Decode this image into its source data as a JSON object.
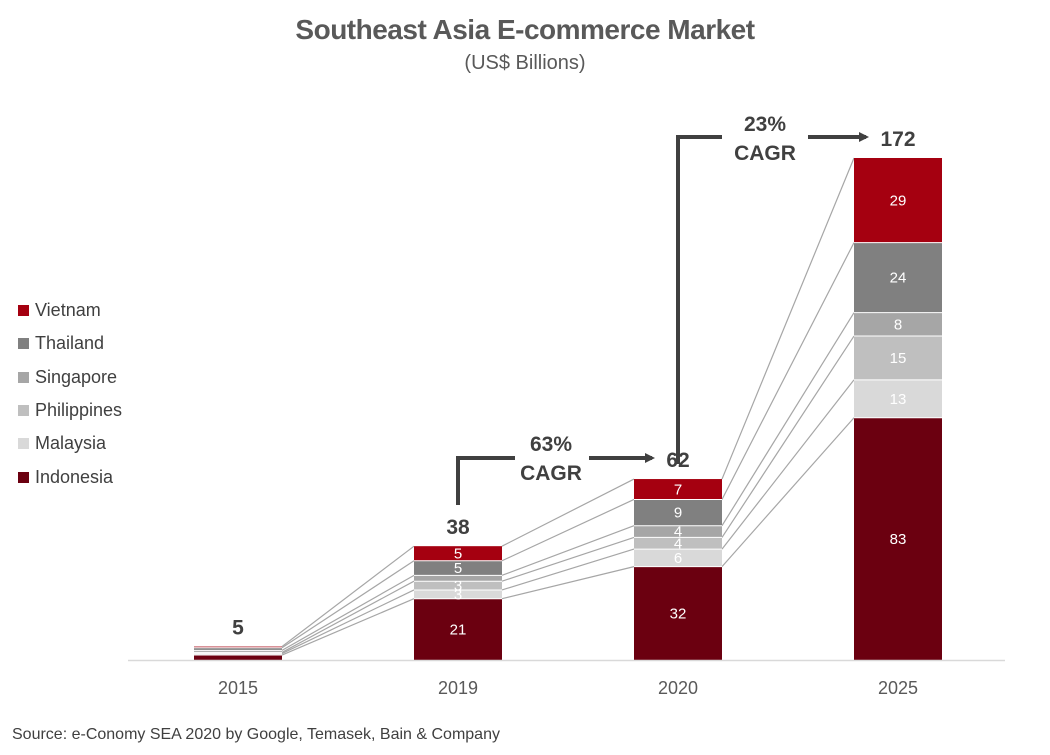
{
  "title": "Southeast Asia E-commerce Market",
  "subtitle": "(US$ Billions)",
  "source": "Source:  e-Conomy SEA 2020 by Google, Temasek, Bain & Company",
  "chart_data": {
    "type": "bar",
    "stacked": true,
    "categories": [
      "2015",
      "2019",
      "2020",
      "2025"
    ],
    "totals": [
      "5",
      "38",
      "62",
      "172"
    ],
    "series": [
      {
        "name": "Indonesia",
        "color": "#6b0010",
        "values": [
          1.7,
          21,
          32,
          83
        ],
        "labels": [
          "",
          "21",
          "32",
          "83"
        ]
      },
      {
        "name": "Malaysia",
        "color": "#d9d9d9",
        "values": [
          0.5,
          3,
          6,
          13
        ],
        "labels": [
          "",
          "3",
          "6",
          "13"
        ]
      },
      {
        "name": "Philippines",
        "color": "#bfbfbf",
        "values": [
          0.4,
          3,
          4,
          15
        ],
        "labels": [
          "",
          "3",
          "4",
          "15"
        ]
      },
      {
        "name": "Singapore",
        "color": "#a6a6a6",
        "values": [
          0.7,
          2,
          4,
          8
        ],
        "labels": [
          "",
          "",
          "4",
          "8"
        ]
      },
      {
        "name": "Thailand",
        "color": "#808080",
        "values": [
          0.9,
          5,
          9,
          24
        ],
        "labels": [
          "",
          "5",
          "9",
          "24"
        ]
      },
      {
        "name": "Vietnam",
        "color": "#a50010",
        "values": [
          0.4,
          5,
          7,
          29
        ],
        "labels": [
          "",
          "5",
          "7",
          "29"
        ]
      }
    ],
    "legend_order": [
      "Vietnam",
      "Thailand",
      "Singapore",
      "Philippines",
      "Malaysia",
      "Indonesia"
    ],
    "legend_position": "left",
    "annotations": [
      {
        "text": [
          "63%",
          "CAGR"
        ],
        "from": "2019",
        "to": "2020"
      },
      {
        "text": [
          "23%",
          "CAGR"
        ],
        "from": "2020",
        "to": "2025"
      }
    ],
    "ylim": [
      0,
      172
    ],
    "grid": false
  }
}
